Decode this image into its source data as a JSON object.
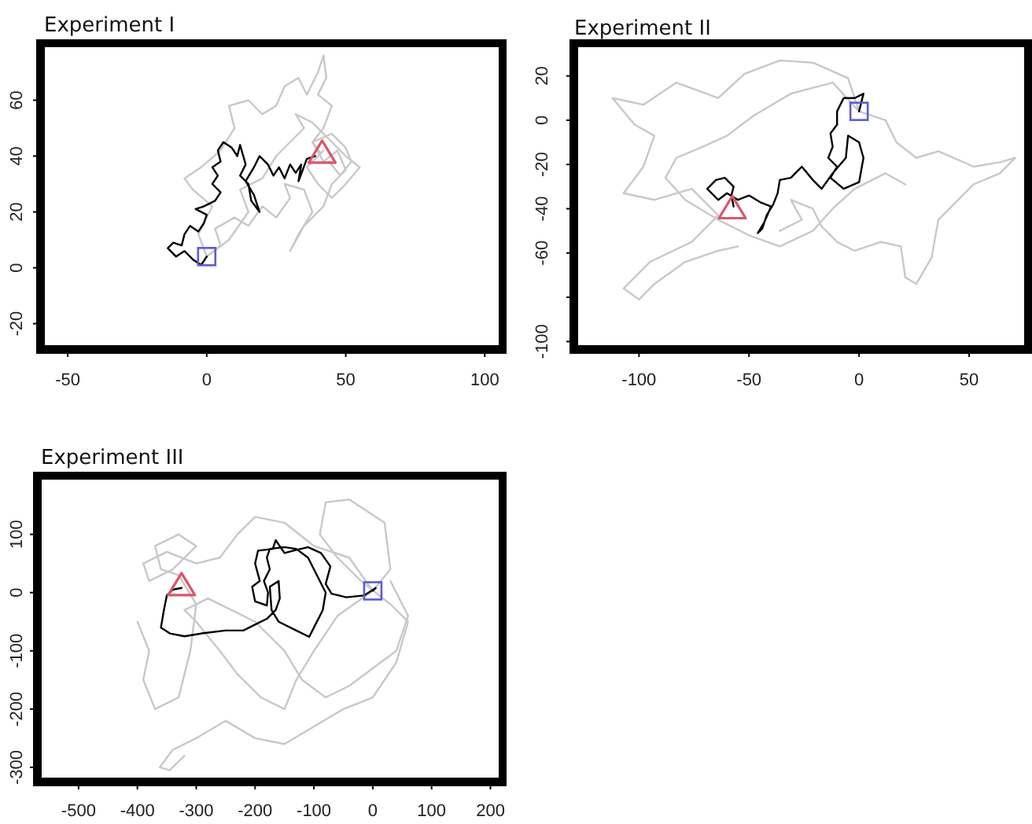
{
  "chart_data": [
    {
      "type": "line",
      "title": "Experiment I",
      "xlim": [
        -58.5,
        105
      ],
      "xticks": [
        -50,
        0,
        50,
        100
      ],
      "ylim": [
        -28,
        79
      ],
      "yticks": [
        -20,
        0,
        20,
        40,
        60
      ],
      "series": [
        {
          "color": "#c8c8c8",
          "x": [
            0,
            5,
            3,
            10,
            15,
            20,
            25,
            30,
            28,
            35,
            38,
            33,
            30,
            35,
            42,
            45,
            50,
            47,
            42,
            38,
            45,
            50,
            52,
            48,
            44
          ],
          "values": [
            4,
            8,
            14,
            18,
            15,
            22,
            18,
            25,
            30,
            28,
            20,
            12,
            6,
            15,
            22,
            30,
            35,
            42,
            38,
            45,
            48,
            43,
            38,
            33,
            38
          ]
        },
        {
          "color": "#c8c8c8",
          "x": [
            0,
            -3,
            2,
            -5,
            -8,
            -2,
            5,
            10,
            8,
            15,
            20,
            25,
            28,
            33,
            36,
            40,
            42,
            43,
            40,
            45,
            42,
            38,
            41
          ],
          "values": [
            4,
            12,
            22,
            28,
            32,
            36,
            42,
            50,
            58,
            60,
            55,
            58,
            65,
            68,
            62,
            70,
            76,
            68,
            62,
            58,
            50,
            45,
            41
          ]
        },
        {
          "color": "#c8c8c8",
          "x": [
            0,
            8,
            15,
            12,
            20,
            25,
            30,
            35,
            32,
            38,
            45,
            50,
            55,
            50,
            45,
            40,
            36,
            42
          ],
          "values": [
            4,
            10,
            20,
            28,
            32,
            40,
            45,
            50,
            55,
            52,
            45,
            40,
            36,
            30,
            25,
            30,
            36,
            42
          ]
        },
        {
          "color": "#000000",
          "x": [
            0,
            -2,
            -5,
            -8,
            -11,
            -14,
            -12,
            -9,
            -8,
            -6,
            -3,
            -1,
            0,
            -4,
            -1,
            3,
            5,
            2,
            4,
            2,
            5,
            4,
            6,
            9,
            11,
            12,
            14,
            12,
            15,
            16,
            19,
            17,
            14,
            17,
            19,
            22,
            24,
            26,
            28,
            30,
            32,
            34,
            33,
            36,
            39
          ],
          "values": [
            4,
            1,
            3,
            6,
            4,
            7,
            9,
            8,
            12,
            15,
            13,
            16,
            19,
            21,
            22,
            24,
            27,
            30,
            33,
            36,
            38,
            42,
            45,
            43,
            40,
            44,
            37,
            33,
            30,
            24,
            20,
            26,
            31,
            36,
            40,
            37,
            33,
            36,
            32,
            37,
            34,
            37,
            31,
            39,
            40
          ]
        },
        {
          "type": "scatter",
          "marker": "square",
          "color": "#5b5bd6",
          "x": [
            0
          ],
          "values": [
            4
          ]
        },
        {
          "type": "scatter",
          "marker": "triangle",
          "color": "#d9566b",
          "x": [
            41.5
          ],
          "values": [
            41
          ]
        }
      ]
    },
    {
      "type": "line",
      "title": "Experiment II",
      "xlim": [
        -128,
        75
      ],
      "xticks": [
        -100,
        -50,
        0,
        50
      ],
      "ylim": [
        -102,
        33
      ],
      "yticks": [
        -100,
        {
          "value": -80,
          "label": null
        },
        -60,
        -40,
        -20,
        0,
        20
      ],
      "series": [
        {
          "color": "#c8c8c8",
          "x": [
            0,
            -5,
            -21,
            -36,
            -52,
            -64,
            -83,
            -98,
            -112,
            -102,
            -93,
            -98,
            -107,
            -93,
            -76,
            -64,
            -76,
            -95,
            -100,
            -107,
            -100,
            -93,
            -79,
            -64,
            -55
          ],
          "values": [
            4,
            19,
            26,
            27,
            21,
            10,
            17,
            7,
            10,
            -2,
            -7,
            -21,
            -33,
            -36,
            -31,
            -43,
            -55,
            -64,
            -69,
            -76,
            -81,
            -74,
            -64,
            -59,
            -57
          ]
        },
        {
          "color": "#c8c8c8",
          "x": [
            0,
            12,
            17,
            26,
            36,
            43,
            52,
            64,
            71,
            64,
            52,
            43,
            36,
            33,
            26,
            21,
            19,
            10,
            -2,
            -10,
            -17,
            -21,
            -31,
            -26,
            -36
          ],
          "values": [
            4,
            0,
            -10,
            -17,
            -14,
            -17,
            -21,
            -19,
            -17,
            -24,
            -29,
            -38,
            -45,
            -62,
            -74,
            -71,
            -57,
            -55,
            -59,
            -55,
            -48,
            -40,
            -36,
            -45,
            -50
          ]
        },
        {
          "color": "#c8c8c8",
          "x": [
            0,
            -12,
            -31,
            -48,
            -60,
            -71,
            -83,
            -88,
            -79,
            -64,
            -50,
            -36,
            -21,
            -12,
            -2,
            12,
            21
          ],
          "values": [
            4,
            17,
            12,
            2,
            -7,
            -12,
            -17,
            -26,
            -36,
            -45,
            -52,
            -57,
            -50,
            -40,
            -31,
            -24,
            -29
          ]
        },
        {
          "color": "#000000",
          "x": [
            0,
            2,
            -2,
            -7,
            -10,
            -10,
            -13,
            -12,
            -14,
            -10,
            -13,
            -7,
            0,
            2,
            0,
            -5,
            -6,
            -12,
            -17,
            -21,
            -26,
            -31,
            -36,
            -37,
            -39,
            -42,
            -44,
            -46,
            -43,
            -40,
            -45,
            -50,
            -55,
            -60,
            -64,
            -69,
            -65,
            -61,
            -57,
            -58,
            -57
          ],
          "values": [
            4,
            12,
            10,
            10,
            4,
            -2,
            -6,
            -12,
            -17,
            -21,
            -26,
            -31,
            -28,
            -17,
            -10,
            -7,
            -17,
            -24,
            -31,
            -27,
            -21,
            -26,
            -27,
            -33,
            -38,
            -43,
            -49,
            -51,
            -46,
            -39,
            -37,
            -34,
            -36,
            -33,
            -36,
            -31,
            -27,
            -26,
            -30,
            -34,
            -39
          ]
        },
        {
          "type": "scatter",
          "marker": "square",
          "color": "#5b5bd6",
          "x": [
            0
          ],
          "values": [
            4
          ]
        },
        {
          "type": "scatter",
          "marker": "triangle",
          "color": "#d9566b",
          "x": [
            -57.6
          ],
          "values": [
            -40
          ]
        }
      ]
    },
    {
      "type": "line",
      "title": "Experiment III",
      "xlim": [
        -564,
        214
      ],
      "xticks": [
        -500,
        -400,
        -300,
        -200,
        -100,
        0,
        100,
        200
      ],
      "ylim": [
        -319,
        194
      ],
      "yticks": [
        -300,
        -200,
        -100,
        0,
        100
      ],
      "series": [
        {
          "color": "#c8c8c8",
          "x": [
            0,
            30,
            20,
            -40,
            -80,
            -90,
            -60,
            -20,
            30,
            60,
            40,
            0,
            -50,
            -100,
            -150,
            -200,
            -250,
            -300,
            -340,
            -362,
            -345,
            -320
          ],
          "values": [
            3,
            40,
            120,
            160,
            155,
            100,
            60,
            20,
            -20,
            -50,
            -120,
            -180,
            -200,
            -230,
            -260,
            -250,
            -220,
            -250,
            -270,
            -300,
            -305,
            -280
          ]
        },
        {
          "color": "#c8c8c8",
          "x": [
            0,
            -40,
            -100,
            -150,
            -200,
            -230,
            -260,
            -300,
            -350,
            -390,
            -380,
            -340,
            -300,
            -330,
            -370,
            -360,
            -330,
            -300,
            -310,
            -330,
            -370,
            -390,
            -380,
            -400
          ],
          "values": [
            3,
            60,
            80,
            120,
            130,
            100,
            60,
            50,
            70,
            50,
            20,
            40,
            80,
            100,
            80,
            40,
            30,
            -20,
            -100,
            -180,
            -200,
            -150,
            -100,
            -50
          ]
        },
        {
          "color": "#c8c8c8",
          "x": [
            0,
            -60,
            -100,
            -130,
            -150,
            -190,
            -230,
            -260,
            -300,
            -320,
            -280,
            -240,
            -200,
            -150,
            -120,
            -80,
            -40,
            0,
            40,
            60,
            30
          ],
          "values": [
            3,
            -40,
            -100,
            -150,
            -200,
            -180,
            -140,
            -100,
            -50,
            -30,
            -10,
            -30,
            -50,
            -100,
            -150,
            -180,
            -160,
            -130,
            -100,
            -40,
            20
          ]
        },
        {
          "color": "#000000",
          "x": [
            0,
            5,
            -15,
            -45,
            -70,
            -80,
            -72,
            -88,
            -110,
            -135,
            -150,
            -165,
            -170,
            -195,
            -200,
            -192,
            -205,
            -200,
            -180,
            -178,
            -185,
            -175,
            -180,
            -175,
            -150,
            -130,
            -110,
            -95,
            -80,
            -85,
            -100,
            -108,
            -130,
            -160,
            -172,
            -175,
            -160,
            -158,
            -165,
            -180,
            -200,
            -220,
            -250,
            -290,
            -320,
            -345,
            -360,
            -355,
            -350,
            -340,
            -325
          ],
          "values": [
            3,
            8,
            -5,
            -8,
            -2,
            15,
            45,
            68,
            78,
            72,
            68,
            90,
            75,
            72,
            50,
            20,
            10,
            -15,
            -22,
            0,
            20,
            40,
            60,
            75,
            78,
            75,
            60,
            30,
            0,
            -30,
            -60,
            -76,
            -65,
            -50,
            -30,
            10,
            20,
            -10,
            -30,
            -45,
            -55,
            -65,
            -65,
            -70,
            -75,
            -70,
            -60,
            -30,
            -5,
            5,
            8
          ]
        },
        {
          "type": "scatter",
          "marker": "square",
          "color": "#5b5bd6",
          "x": [
            0
          ],
          "values": [
            3
          ]
        },
        {
          "type": "scatter",
          "marker": "triangle",
          "color": "#d9566b",
          "x": [
            -325
          ],
          "values": [
            12
          ]
        }
      ]
    }
  ]
}
